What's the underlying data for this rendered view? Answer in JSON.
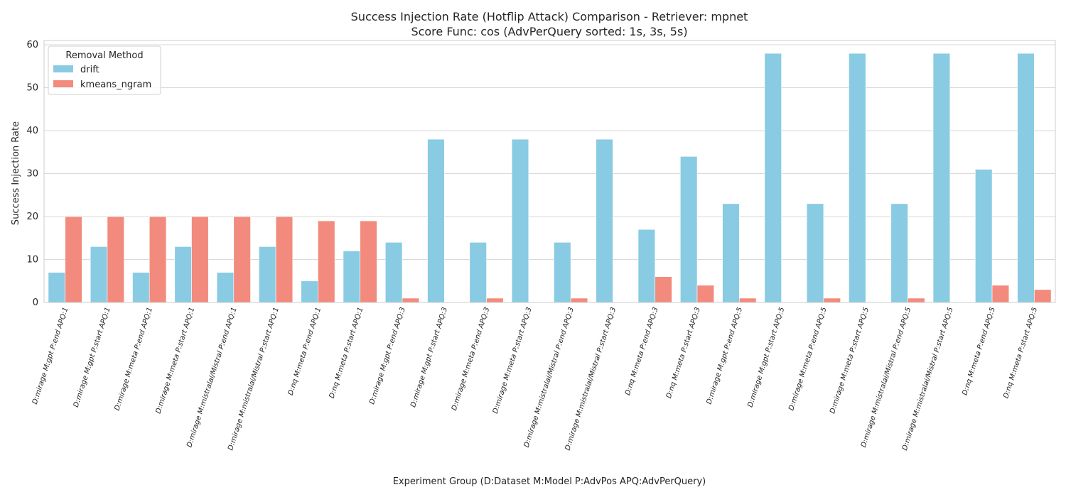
{
  "chart_data": {
    "type": "bar",
    "title": "Success Injection Rate (Hotflip Attack) Comparison - Retriever: mpnet",
    "subtitle": "Score Func: cos (AdvPerQuery sorted: 1s, 3s, 5s)",
    "xlabel": "Experiment Group (D:Dataset M:Model P:AdvPos APQ:AdvPerQuery)",
    "ylabel": "Success Injection Rate",
    "ylim": [
      0,
      61
    ],
    "yticks": [
      0,
      10,
      20,
      30,
      40,
      50,
      60
    ],
    "grid": true,
    "legend": {
      "title": "Removal Method",
      "placement": "top-left"
    },
    "categories": [
      "D:mirage M:gpt P:end APQ:1",
      "D:mirage M:gpt P:start APQ:1",
      "D:mirage M:meta P:end APQ:1",
      "D:mirage M:meta P:start APQ:1",
      "D:mirage M:mistralai/Mistral P:end APQ:1",
      "D:mirage M:mistralai/Mistral P:start APQ:1",
      "D:nq M:meta P:end APQ:1",
      "D:nq M:meta P:start APQ:1",
      "D:mirage M:gpt P:end APQ:3",
      "D:mirage M:gpt P:start APQ:3",
      "D:mirage M:meta P:end APQ:3",
      "D:mirage M:meta P:start APQ:3",
      "D:mirage M:mistralai/Mistral P:end APQ:3",
      "D:mirage M:mistralai/Mistral P:start APQ:3",
      "D:nq M:meta P:end APQ:3",
      "D:nq M:meta P:start APQ:3",
      "D:mirage M:gpt P:end APQ:5",
      "D:mirage M:gpt P:start APQ:5",
      "D:mirage M:meta P:end APQ:5",
      "D:mirage M:meta P:start APQ:5",
      "D:mirage M:mistralai/Mistral P:end APQ:5",
      "D:mirage M:mistralai/Mistral P:start APQ:5",
      "D:nq M:meta P:end APQ:5",
      "D:nq M:meta P:start APQ:5"
    ],
    "series": [
      {
        "name": "drift",
        "color": "#89cbe3",
        "values": [
          7,
          13,
          7,
          13,
          7,
          13,
          5,
          12,
          14,
          38,
          14,
          38,
          14,
          38,
          17,
          34,
          23,
          58,
          23,
          58,
          23,
          58,
          31,
          58
        ]
      },
      {
        "name": "kmeans_ngram",
        "color": "#f28b7d",
        "values": [
          20,
          20,
          20,
          20,
          20,
          20,
          19,
          19,
          1,
          0,
          1,
          0,
          1,
          0,
          6,
          4,
          1,
          0,
          1,
          0,
          1,
          0,
          4,
          3
        ]
      }
    ]
  }
}
